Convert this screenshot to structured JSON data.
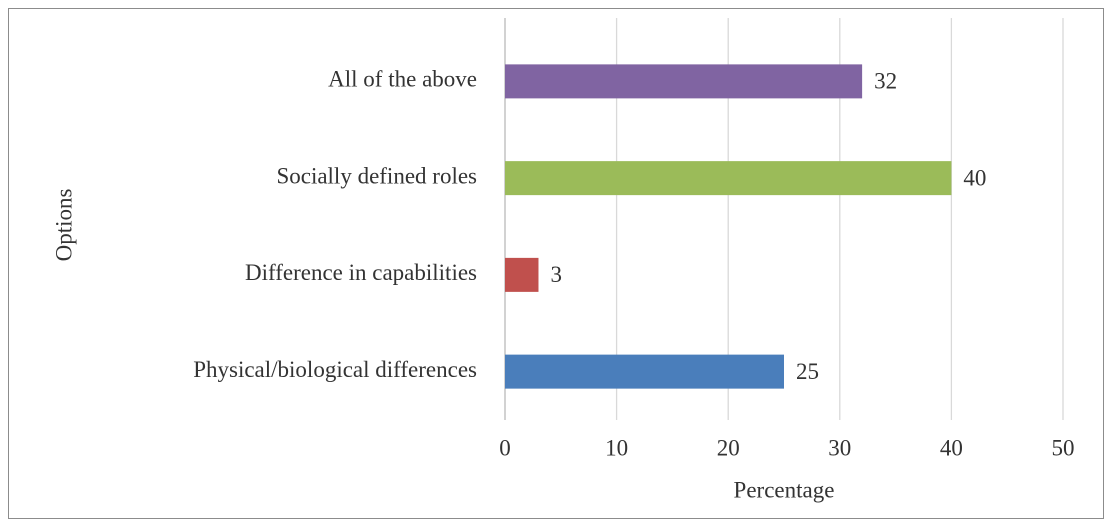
{
  "chart_data": {
    "type": "bar",
    "orientation": "horizontal",
    "categories": [
      "Physical/biological differences",
      "Difference in capabilities",
      "Socially defined roles",
      "All of the above"
    ],
    "values": [
      25,
      3,
      40,
      32
    ],
    "colors": [
      "#4a7ebb",
      "#c0504d",
      "#9bbb59",
      "#8064a2"
    ],
    "xlabel": "Percentage",
    "ylabel": "Options",
    "xlim": [
      0,
      50
    ],
    "xticks": [
      0,
      10,
      20,
      30,
      40,
      50
    ],
    "grid": true
  }
}
